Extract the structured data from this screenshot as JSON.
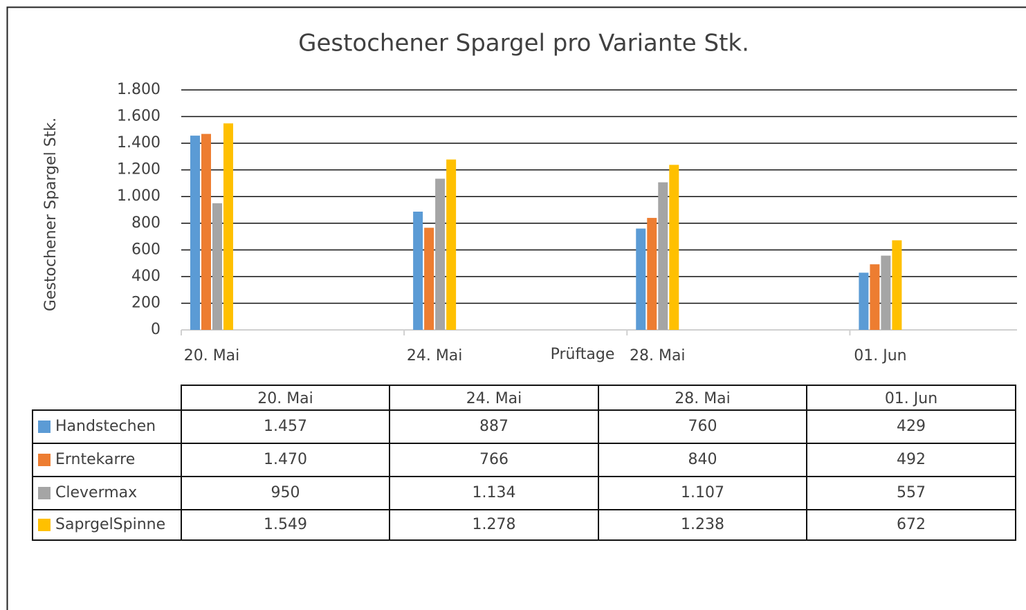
{
  "chart_data": {
    "type": "bar",
    "title": "Gestochener Spargel pro Variante Stk.",
    "y_label": "Gestochener Spargel Stk.",
    "x_label": "Prüftage",
    "categories": [
      "20. Mai",
      "24. Mai",
      "28. Mai",
      "01. Jun"
    ],
    "series": [
      {
        "name": "Handstechen",
        "color": "#5b9bd5",
        "values": [
          1457,
          887,
          760,
          429
        ],
        "value_labels": [
          "1.457",
          "887",
          "760",
          "429"
        ]
      },
      {
        "name": "Erntekarre",
        "color": "#ed7d31",
        "values": [
          1470,
          766,
          840,
          492
        ],
        "value_labels": [
          "1.470",
          "766",
          "840",
          "492"
        ]
      },
      {
        "name": "Clevermax",
        "color": "#a5a5a5",
        "values": [
          950,
          1134,
          1107,
          557
        ],
        "value_labels": [
          "950",
          "1.134",
          "1.107",
          "557"
        ]
      },
      {
        "name": "SaprgelSpinne",
        "color": "#ffc000",
        "values": [
          1549,
          1278,
          1238,
          672
        ],
        "value_labels": [
          "1.549",
          "1.278",
          "1.238",
          "672"
        ]
      }
    ],
    "ylim": [
      0,
      1800
    ],
    "yticks": [
      0,
      200,
      400,
      600,
      800,
      {
        "value": 1000,
        "label": "1.000"
      },
      {
        "value": 1200,
        "label": "1.200"
      },
      {
        "value": 1400,
        "label": "1.400"
      },
      {
        "value": 1600,
        "label": "1.600"
      },
      {
        "value": 1800,
        "label": "1.800"
      }
    ],
    "grid": true
  }
}
